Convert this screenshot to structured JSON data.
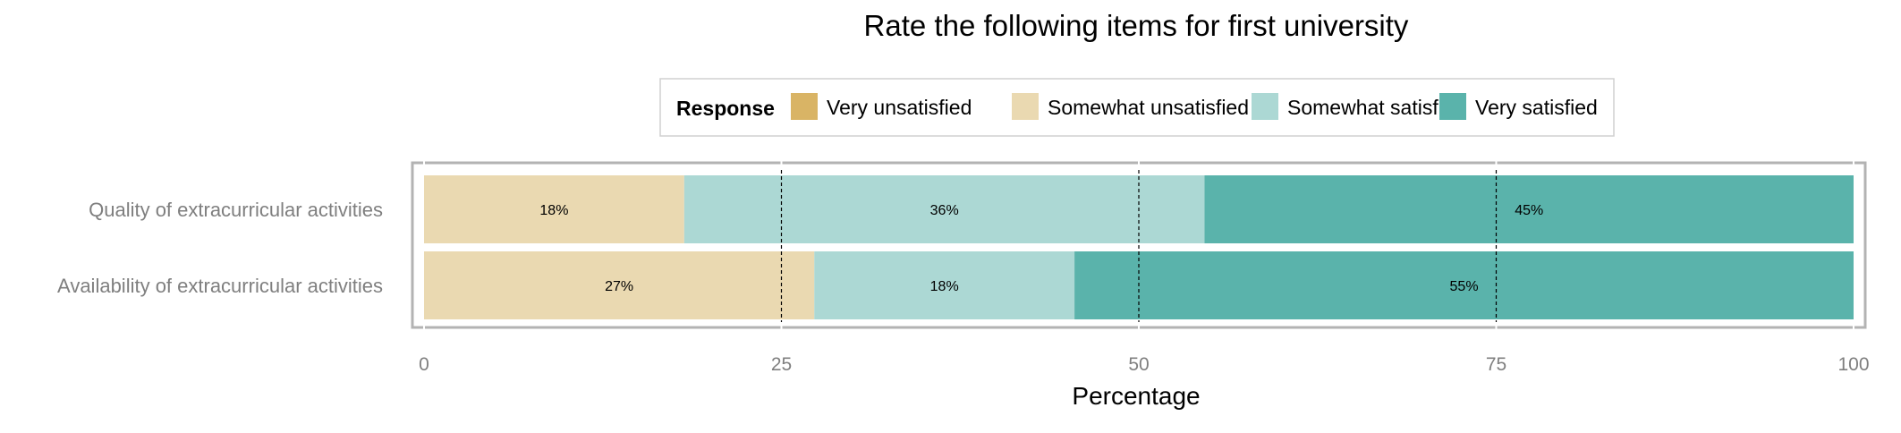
{
  "chart_data": {
    "type": "bar",
    "orientation": "horizontal",
    "stacked": true,
    "title": "Rate the following items for first university",
    "xlabel": "Percentage",
    "ylabel": "",
    "xlim": [
      0,
      100
    ],
    "x_ticks": [
      "0",
      "25",
      "50",
      "75",
      "100"
    ],
    "x_tick_values": [
      0,
      25,
      50,
      75,
      100
    ],
    "reference_lines": [
      25,
      50,
      75
    ],
    "grid": true,
    "legend": {
      "title": "Response",
      "placement": "top",
      "entries": [
        "Very unsatisfied",
        "Somewhat unsatisfied",
        "Somewhat satisfied",
        "Very satisfied"
      ]
    },
    "categories": [
      "Quality of extracurricular activities",
      "Availability of extracurricular activities"
    ],
    "series": [
      {
        "name": "Very unsatisfied",
        "color": "#d9b465",
        "values": [
          0,
          0
        ],
        "labels": [
          "",
          ""
        ]
      },
      {
        "name": "Somewhat unsatisfied",
        "color": "#ead9b1",
        "values": [
          18.2,
          27.3
        ],
        "labels": [
          "18%",
          "27%"
        ]
      },
      {
        "name": "Somewhat satisfied",
        "color": "#acd8d4",
        "values": [
          36.4,
          18.2
        ],
        "labels": [
          "36%",
          "18%"
        ]
      },
      {
        "name": "Very satisfied",
        "color": "#5ab3ab",
        "values": [
          45.4,
          54.5
        ],
        "labels": [
          "45%",
          "55%"
        ]
      }
    ]
  }
}
